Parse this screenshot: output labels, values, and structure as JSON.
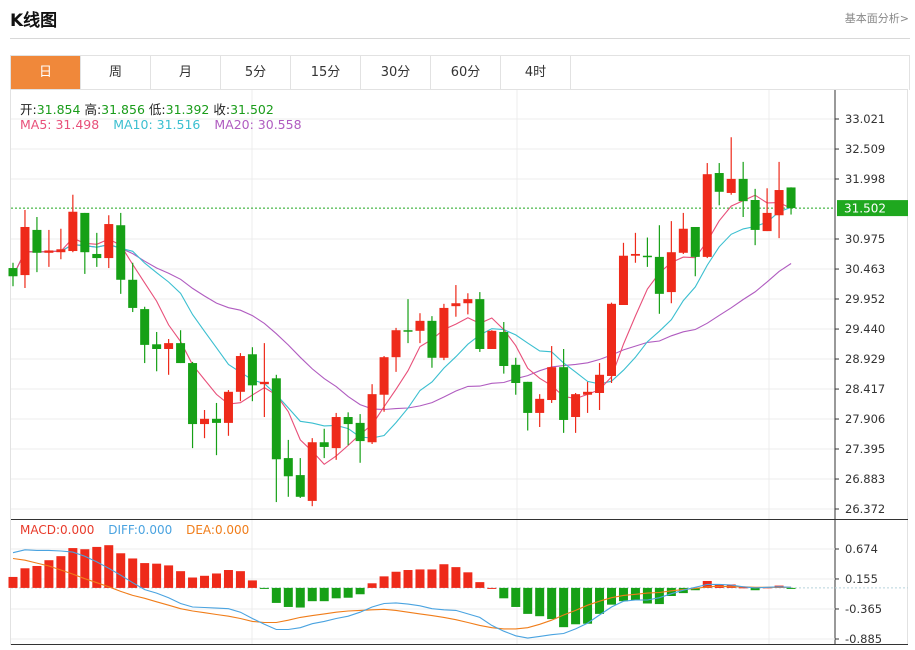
{
  "header": {
    "title": "K线图",
    "link": "基本面分析>"
  },
  "tabs": [
    {
      "label": "日",
      "active": true
    },
    {
      "label": "周"
    },
    {
      "label": "月"
    },
    {
      "label": "5分"
    },
    {
      "label": "15分"
    },
    {
      "label": "30分"
    },
    {
      "label": "60分"
    },
    {
      "label": "4时"
    }
  ],
  "ohlc_legend": {
    "open_label": "开:",
    "open": "31.854",
    "high_label": "高:",
    "high": "31.856",
    "low_label": "低:",
    "low": "31.392",
    "close_label": "收:",
    "close": "31.502"
  },
  "ma_legend": {
    "ma5": "MA5: 31.498",
    "ma10": "MA10: 31.516",
    "ma20": "MA20: 30.558"
  },
  "macd_legend": {
    "macd": "MACD:0.000",
    "diff": "DIFF:0.000",
    "dea": "DEA:0.000"
  },
  "colors": {
    "up": "#ee2a1a",
    "down": "#16a016",
    "ma5": "#e8507a",
    "ma10": "#3bbfd0",
    "ma20": "#b05cc0",
    "diff": "#4aa3e0",
    "dea": "#f07d1a",
    "accent": "#f0883a",
    "current": "#1fa81f"
  },
  "chart_data": [
    {
      "type": "candlestick",
      "y_ticks": [
        "33.021",
        "32.509",
        "31.998",
        "30.975",
        "30.463",
        "29.952",
        "29.440",
        "28.929",
        "28.417",
        "27.906",
        "27.395",
        "26.883",
        "26.372"
      ],
      "ylim": [
        26.372,
        33.021
      ],
      "current_price": "31.502",
      "grid": true,
      "candles_ohlc": [
        [
          30.48,
          30.57,
          30.17,
          30.34
        ],
        [
          30.36,
          31.47,
          30.14,
          31.18
        ],
        [
          31.13,
          31.35,
          30.41,
          30.74
        ],
        [
          30.74,
          31.13,
          30.5,
          30.78
        ],
        [
          30.75,
          31.15,
          30.63,
          30.8
        ],
        [
          30.77,
          31.73,
          30.75,
          31.44
        ],
        [
          31.42,
          31.42,
          30.38,
          30.75
        ],
        [
          30.72,
          31.08,
          30.5,
          30.65
        ],
        [
          30.65,
          31.38,
          30.48,
          31.23
        ],
        [
          31.21,
          31.42,
          30.04,
          30.28
        ],
        [
          30.28,
          30.57,
          29.73,
          29.8
        ],
        [
          29.78,
          29.82,
          28.86,
          29.17
        ],
        [
          29.18,
          29.39,
          28.72,
          29.1
        ],
        [
          29.1,
          29.27,
          28.66,
          29.2
        ],
        [
          29.2,
          29.42,
          28.86,
          28.86
        ],
        [
          28.86,
          28.88,
          27.41,
          27.82
        ],
        [
          27.82,
          28.06,
          27.58,
          27.91
        ],
        [
          27.91,
          28.18,
          27.29,
          27.84
        ],
        [
          27.84,
          28.4,
          27.62,
          28.37
        ],
        [
          28.37,
          29.03,
          28.21,
          28.98
        ],
        [
          29.01,
          29.13,
          28.21,
          28.48
        ],
        [
          28.5,
          29.2,
          27.94,
          28.54
        ],
        [
          28.6,
          28.66,
          26.49,
          27.22
        ],
        [
          27.24,
          27.55,
          26.58,
          26.93
        ],
        [
          26.95,
          27.24,
          26.56,
          26.58
        ],
        [
          26.51,
          27.58,
          26.42,
          27.51
        ],
        [
          27.51,
          27.74,
          27.24,
          27.43
        ],
        [
          27.41,
          28.01,
          27.21,
          27.94
        ],
        [
          27.94,
          28.02,
          27.46,
          27.82
        ],
        [
          27.84,
          27.99,
          27.16,
          27.53
        ],
        [
          27.51,
          28.5,
          27.48,
          28.33
        ],
        [
          28.32,
          28.98,
          28.03,
          28.96
        ],
        [
          28.96,
          29.46,
          28.71,
          29.42
        ],
        [
          29.42,
          29.95,
          29.2,
          29.41
        ],
        [
          29.41,
          29.71,
          29.2,
          29.58
        ],
        [
          29.58,
          29.66,
          28.78,
          28.95
        ],
        [
          28.95,
          29.87,
          28.91,
          29.8
        ],
        [
          29.83,
          30.19,
          29.65,
          29.88
        ],
        [
          29.88,
          30.05,
          29.69,
          29.95
        ],
        [
          29.95,
          30.07,
          29.05,
          29.1
        ],
        [
          29.1,
          29.42,
          29.1,
          29.41
        ],
        [
          29.39,
          29.56,
          28.68,
          28.81
        ],
        [
          28.83,
          28.95,
          28.32,
          28.52
        ],
        [
          28.54,
          28.54,
          27.71,
          28.01
        ],
        [
          28.01,
          28.33,
          27.77,
          28.25
        ],
        [
          28.23,
          29.15,
          28.18,
          28.79
        ],
        [
          28.79,
          29.1,
          27.67,
          27.89
        ],
        [
          27.94,
          28.35,
          27.67,
          28.33
        ],
        [
          28.32,
          28.54,
          28.01,
          28.37
        ],
        [
          28.35,
          28.86,
          28.06,
          28.66
        ],
        [
          28.64,
          29.89,
          28.52,
          29.87
        ],
        [
          29.85,
          30.91,
          29.85,
          30.69
        ],
        [
          30.69,
          31.08,
          30.57,
          30.72
        ],
        [
          30.69,
          31.0,
          30.5,
          30.67
        ],
        [
          30.67,
          31.21,
          29.7,
          30.04
        ],
        [
          30.07,
          31.28,
          29.88,
          30.75
        ],
        [
          30.74,
          31.42,
          30.72,
          31.15
        ],
        [
          31.18,
          31.18,
          30.34,
          30.67
        ],
        [
          30.67,
          32.27,
          30.65,
          32.08
        ],
        [
          32.1,
          32.27,
          31.55,
          31.78
        ],
        [
          31.76,
          32.71,
          31.73,
          32.0
        ],
        [
          32.0,
          32.29,
          31.35,
          31.62
        ],
        [
          31.64,
          31.83,
          30.87,
          31.13
        ],
        [
          31.11,
          31.84,
          31.11,
          31.42
        ],
        [
          31.38,
          32.29,
          30.99,
          31.81
        ],
        [
          31.854,
          31.856,
          31.392,
          31.502
        ]
      ],
      "series": [
        "MA5",
        "MA10",
        "MA20"
      ]
    },
    {
      "type": "bar+line",
      "y_ticks": [
        "0.674",
        "0.155",
        "-0.365",
        "-0.885"
      ],
      "ylim": [
        -0.885,
        0.674
      ],
      "macd_hist": [
        0.19,
        0.34,
        0.38,
        0.48,
        0.55,
        0.69,
        0.67,
        0.71,
        0.74,
        0.6,
        0.51,
        0.43,
        0.42,
        0.39,
        0.29,
        0.18,
        0.21,
        0.25,
        0.31,
        0.29,
        0.13,
        -0.01,
        -0.26,
        -0.33,
        -0.34,
        -0.23,
        -0.23,
        -0.18,
        -0.17,
        -0.11,
        0.08,
        0.2,
        0.28,
        0.31,
        0.32,
        0.32,
        0.41,
        0.36,
        0.27,
        0.1,
        0.0,
        -0.18,
        -0.33,
        -0.45,
        -0.49,
        -0.54,
        -0.68,
        -0.63,
        -0.62,
        -0.45,
        -0.29,
        -0.23,
        -0.21,
        -0.27,
        -0.28,
        -0.14,
        -0.09,
        -0.04,
        0.12,
        0.06,
        0.06,
        0.01,
        -0.04,
        0.01,
        0.04,
        -0.01
      ],
      "diff": [
        0.61,
        0.66,
        0.65,
        0.65,
        0.64,
        0.62,
        0.55,
        0.45,
        0.34,
        0.22,
        0.09,
        -0.03,
        -0.09,
        -0.17,
        -0.27,
        -0.33,
        -0.34,
        -0.35,
        -0.36,
        -0.42,
        -0.53,
        -0.63,
        -0.72,
        -0.72,
        -0.69,
        -0.62,
        -0.58,
        -0.53,
        -0.49,
        -0.42,
        -0.33,
        -0.27,
        -0.26,
        -0.28,
        -0.31,
        -0.36,
        -0.38,
        -0.39,
        -0.45,
        -0.51,
        -0.65,
        -0.75,
        -0.83,
        -0.87,
        -0.84,
        -0.81,
        -0.79,
        -0.71,
        -0.61,
        -0.47,
        -0.33,
        -0.23,
        -0.21,
        -0.21,
        -0.17,
        -0.1,
        -0.04,
        0.01,
        0.06,
        0.06,
        0.05,
        0.02,
        0.0,
        0.01,
        0.02,
        0.01
      ],
      "dea": [
        0.51,
        0.48,
        0.43,
        0.38,
        0.31,
        0.24,
        0.16,
        0.09,
        0.02,
        -0.06,
        -0.13,
        -0.18,
        -0.24,
        -0.3,
        -0.36,
        -0.4,
        -0.43,
        -0.46,
        -0.49,
        -0.53,
        -0.58,
        -0.6,
        -0.6,
        -0.56,
        -0.51,
        -0.48,
        -0.45,
        -0.42,
        -0.4,
        -0.39,
        -0.38,
        -0.37,
        -0.39,
        -0.42,
        -0.45,
        -0.48,
        -0.51,
        -0.55,
        -0.6,
        -0.65,
        -0.69,
        -0.71,
        -0.71,
        -0.69,
        -0.63,
        -0.56,
        -0.47,
        -0.39,
        -0.3,
        -0.23,
        -0.17,
        -0.13,
        -0.11,
        -0.09,
        -0.08,
        -0.05,
        -0.03,
        -0.01,
        0.02,
        0.03,
        0.02,
        0.02,
        0.01,
        0.01,
        0.01,
        0.01
      ]
    }
  ]
}
